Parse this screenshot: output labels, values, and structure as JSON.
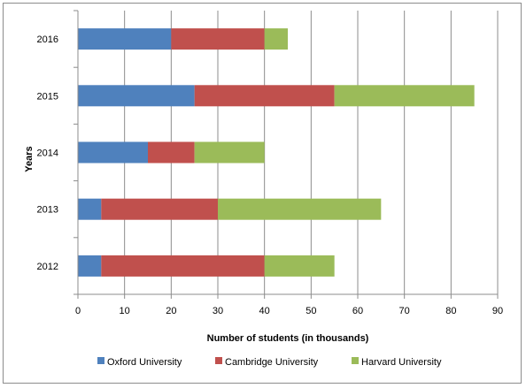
{
  "chart_data": {
    "type": "bar",
    "orientation": "horizontal",
    "stacked": true,
    "title": "",
    "xlabel": "Number of students (in thousands)",
    "ylabel": "Years",
    "categories": [
      "2012",
      "2013",
      "2014",
      "2015",
      "2016"
    ],
    "series": [
      {
        "name": "Oxford University",
        "color": "#4f81bd",
        "values": [
          5,
          5,
          15,
          25,
          20
        ]
      },
      {
        "name": "Cambridge University",
        "color": "#c0504d",
        "values": [
          35,
          25,
          10,
          30,
          20
        ]
      },
      {
        "name": "Harvard University",
        "color": "#9bbb59",
        "values": [
          15,
          35,
          15,
          30,
          5
        ]
      }
    ],
    "xlim": [
      0,
      90
    ],
    "xticks": [
      "0",
      "10",
      "20",
      "30",
      "40",
      "50",
      "60",
      "70",
      "80",
      "90"
    ],
    "grid": "vertical",
    "legend_position": "bottom"
  }
}
